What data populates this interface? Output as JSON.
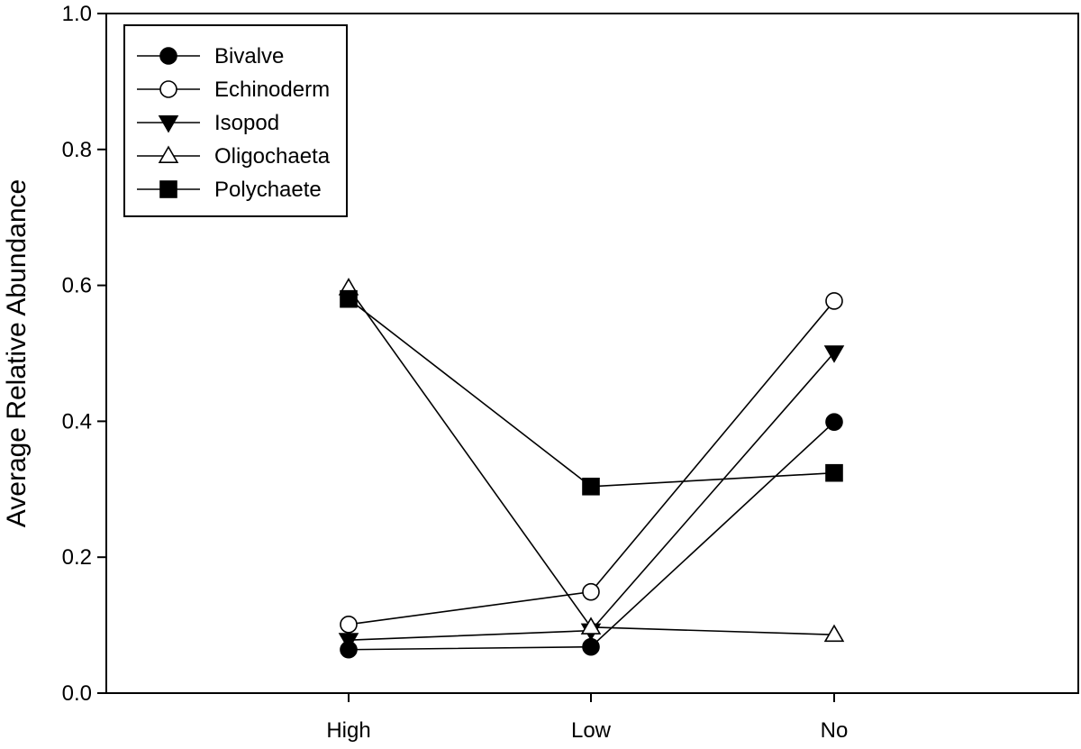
{
  "chart_data": {
    "type": "line",
    "title": "",
    "xlabel": "",
    "ylabel": "Average Relative Abundance",
    "categories": [
      "High",
      "Low",
      "No"
    ],
    "ylim": [
      0.0,
      1.0
    ],
    "yticks": [
      "0.0",
      "0.2",
      "0.4",
      "0.6",
      "0.8",
      "1.0"
    ],
    "grid": false,
    "legend_position": "top-left",
    "series": [
      {
        "name": "Bivalve",
        "marker": "circle-filled",
        "values": [
          0.064,
          0.068,
          0.399
        ]
      },
      {
        "name": "Echinoderm",
        "marker": "circle-open",
        "values": [
          0.101,
          0.149,
          0.577
        ]
      },
      {
        "name": "Isopod",
        "marker": "triangle-down-filled",
        "values": [
          0.078,
          0.092,
          0.501
        ]
      },
      {
        "name": "Oligochaeta",
        "marker": "triangle-up-open",
        "values": [
          0.596,
          0.097,
          0.086
        ]
      },
      {
        "name": "Polychaete",
        "marker": "square-filled",
        "values": [
          0.58,
          0.304,
          0.324
        ]
      }
    ]
  }
}
